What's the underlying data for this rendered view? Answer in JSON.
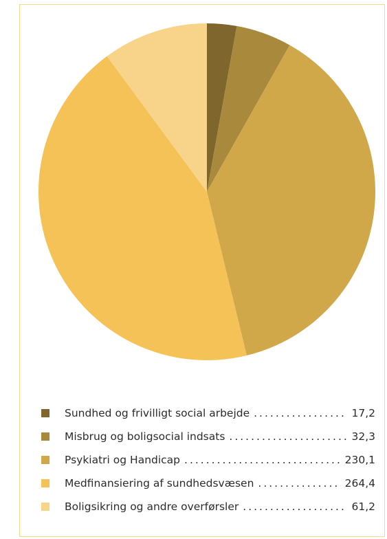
{
  "chart_data": {
    "type": "pie",
    "title": "",
    "legend_position": "bottom",
    "slices": [
      {
        "label": "Sundhed og frivilligt social arbejde",
        "value": 17.2,
        "value_text": "17,2",
        "color": "#7f662c"
      },
      {
        "label": "Misbrug og boligsocial indsats",
        "value": 32.3,
        "value_text": "32,3",
        "color": "#a98a3d"
      },
      {
        "label": "Psykiatri og Handicap",
        "value": 230.1,
        "value_text": "230,1",
        "color": "#d0a84a"
      },
      {
        "label": "Medfinansiering af sundhedsvæsen",
        "value": 264.4,
        "value_text": "264,4",
        "color": "#f4c257"
      },
      {
        "label": "Boligsikring og andre overførsler",
        "value": 61.2,
        "value_text": "61,2",
        "color": "#f8d38a"
      }
    ]
  }
}
